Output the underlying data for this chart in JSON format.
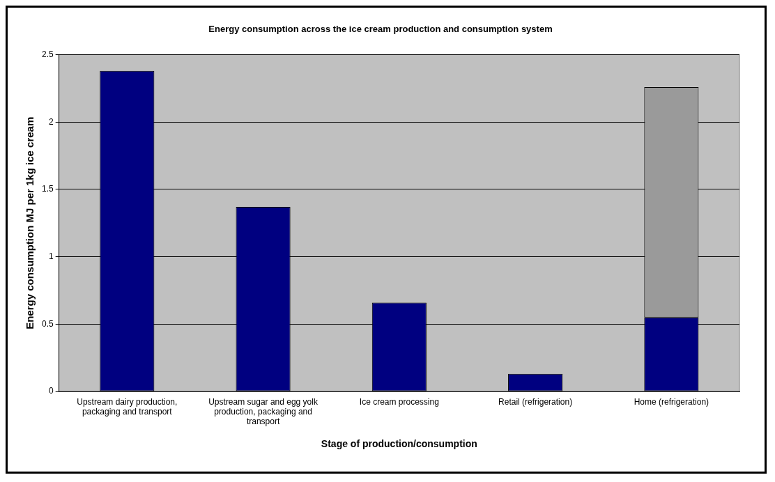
{
  "chart_data": {
    "type": "bar",
    "title": "Energy consumption across the ice cream production and consumption system",
    "xlabel": "Stage of production/consumption",
    "ylabel": "Energy consumption MJ per 1kg ice cream",
    "categories": [
      "Upstream dairy production, packaging and transport",
      "Upstream sugar and egg yolk production, packaging and transport",
      "Ice cream processing",
      "Retail (refrigeration)",
      "Home (refrigeration)"
    ],
    "stacked": true,
    "series": [
      {
        "color": "#000080",
        "values": [
          2.38,
          1.37,
          0.66,
          0.13,
          0.55
        ]
      },
      {
        "color": "#9a9a9a",
        "values": [
          null,
          null,
          null,
          null,
          1.71
        ]
      }
    ],
    "ylim": [
      0,
      2.5
    ],
    "yticks": [
      0,
      0.5,
      1,
      1.5,
      2,
      2.5
    ],
    "grid": "y",
    "legend": false
  }
}
